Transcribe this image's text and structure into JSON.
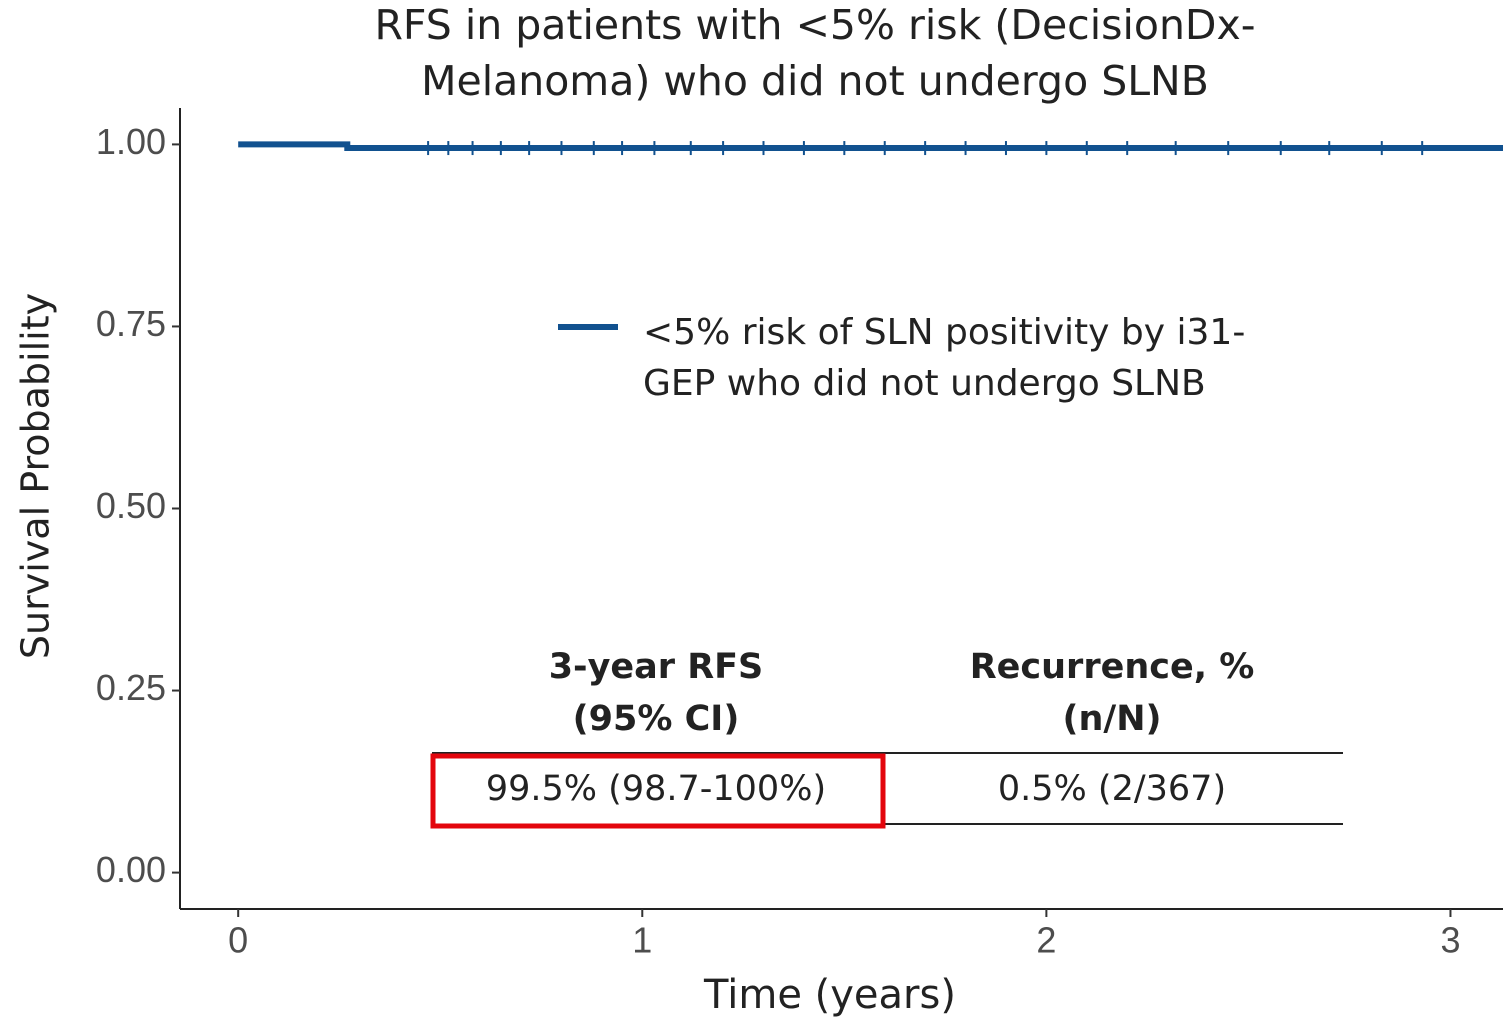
{
  "chart_data": {
    "type": "survival",
    "title": [
      "RFS in patients with <5% risk (DecisionDx-",
      "Melanoma) who did not undergo SLNB"
    ],
    "x_label": "Time (years)",
    "y_label": "Survival Probability",
    "xlim": [
      -0.144,
      3.13
    ],
    "ylim": [
      -0.05,
      1.05
    ],
    "xticks": [
      0,
      1,
      2,
      3
    ],
    "yticks": [
      {
        "value": 0,
        "label": "0.00"
      },
      {
        "value": 0.25,
        "label": "0.25"
      },
      {
        "value": 0.5,
        "label": "0.50"
      },
      {
        "value": 0.75,
        "label": "0.75"
      },
      {
        "value": 1,
        "label": "1.00"
      }
    ],
    "series": [
      {
        "name": [
          "<5% risk of SLN positivity by i31-",
          "GEP who did not undergo SLNB"
        ],
        "color": "#11518f",
        "x": [
          0,
          0.27,
          3.13
        ],
        "values": [
          1,
          0.995,
          0.995
        ],
        "censor_x": [
          0.47,
          0.52,
          0.58,
          0.65,
          0.72,
          0.8,
          0.88,
          0.95,
          1.03,
          1.12,
          1.2,
          1.3,
          1.4,
          1.5,
          1.6,
          1.7,
          1.8,
          1.9,
          2.0,
          2.1,
          2.2,
          2.32,
          2.45,
          2.58,
          2.7,
          2.83,
          2.93
        ],
        "censor_values": [
          0.995,
          0.995,
          0.995,
          0.995,
          0.995,
          0.995,
          0.995,
          0.995,
          0.995,
          0.995,
          0.995,
          0.995,
          0.995,
          0.995,
          0.995,
          0.995,
          0.995,
          0.995,
          0.995,
          0.995,
          0.995,
          0.995,
          0.995,
          0.995,
          0.995,
          0.995,
          0.995
        ]
      }
    ],
    "table": {
      "headers": [
        [
          "3-year RFS",
          "(95% CI)"
        ],
        [
          "Recurrence, %",
          "(n/N)"
        ]
      ],
      "row": [
        "99.5% (98.7-100%)",
        "0.5% (2/367)"
      ]
    }
  }
}
